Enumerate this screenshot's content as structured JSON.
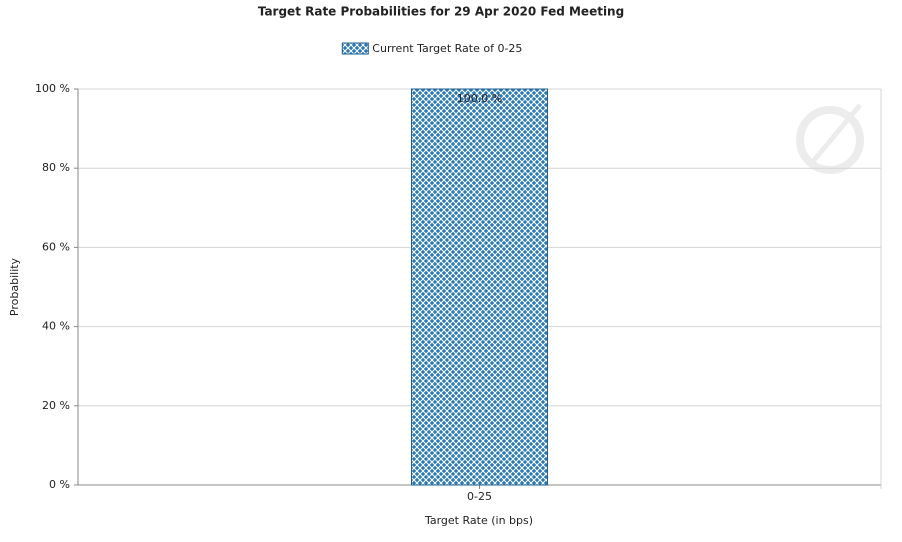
{
  "chart_data": {
    "type": "bar",
    "title": "Target Rate Probabilities for 29 Apr 2020 Fed Meeting",
    "xlabel": "Target Rate (in bps)",
    "ylabel": "Probability",
    "categories": [
      "0-25"
    ],
    "series": [
      {
        "name": "Current Target Rate of 0-25",
        "color": "#2a78b4",
        "values": [
          100
        ],
        "value_labels": [
          "100.0 %"
        ]
      }
    ],
    "ylim": [
      0,
      100
    ],
    "yticks": [
      {
        "value": 0,
        "label": "0 %"
      },
      {
        "value": 20,
        "label": "20 %"
      },
      {
        "value": 40,
        "label": "40 %"
      },
      {
        "value": 60,
        "label": "60 %"
      },
      {
        "value": 80,
        "label": "80 %"
      },
      {
        "value": 100,
        "label": "100 %"
      }
    ],
    "grid": true
  }
}
